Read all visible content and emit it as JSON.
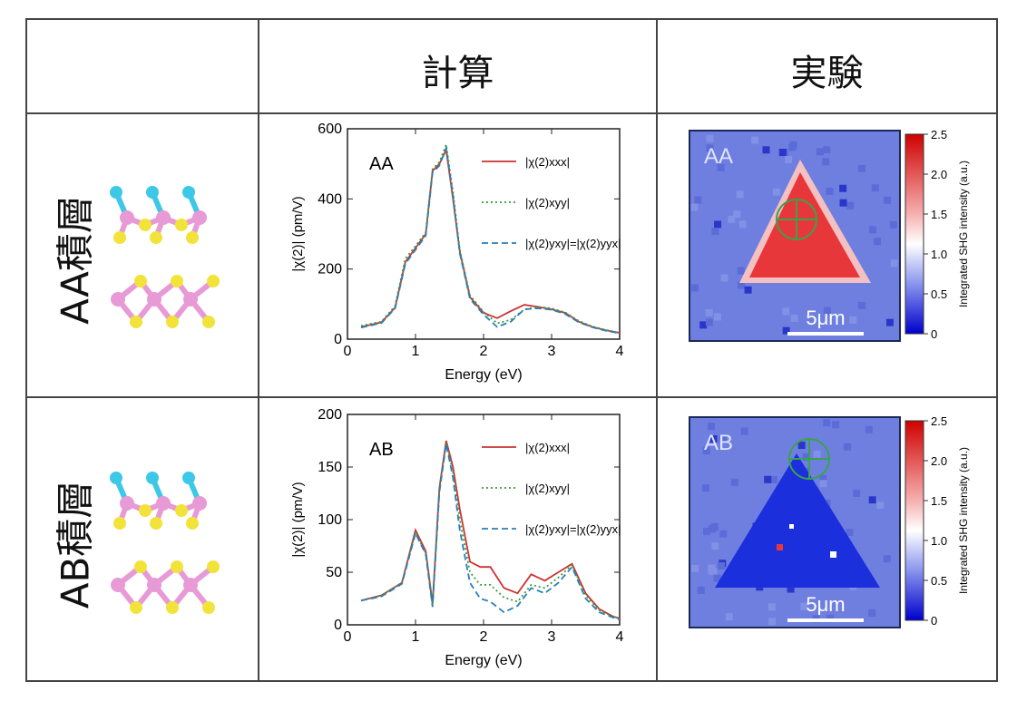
{
  "headers": {
    "calc": "計算",
    "exp": "実験"
  },
  "rows": [
    {
      "label": "AA積層",
      "chart_data": {
        "type": "line",
        "panel_label": "AA",
        "xlabel": "Energy (eV)",
        "ylabel": "|χ(2)| (pm/V)",
        "xlim": [
          0,
          4
        ],
        "ylim": [
          0,
          600
        ],
        "xticks": [
          "0",
          "1",
          "2",
          "3",
          "4"
        ],
        "yticks": [
          "0",
          "200",
          "400",
          "600"
        ],
        "legend_position": "top-right",
        "series": [
          {
            "name": "|χ(2)xxx|",
            "color": "#cc3333",
            "dash": "solid",
            "x": [
              0.2,
              0.5,
              0.7,
              0.85,
              1.0,
              1.15,
              1.25,
              1.35,
              1.45,
              1.55,
              1.65,
              1.8,
              2.0,
              2.2,
              2.4,
              2.6,
              2.8,
              3.0,
              3.2,
              3.4,
              3.6,
              3.8,
              4.0
            ],
            "y": [
              35,
              48,
              90,
              220,
              260,
              300,
              480,
              500,
              540,
              400,
              250,
              120,
              75,
              60,
              80,
              98,
              92,
              85,
              75,
              50,
              35,
              25,
              18
            ]
          },
          {
            "name": "|χ(2)xyy|",
            "color": "#3a9a3a",
            "dash": "dotted",
            "x": [
              0.2,
              0.5,
              0.7,
              0.85,
              1.0,
              1.15,
              1.25,
              1.35,
              1.45,
              1.55,
              1.65,
              1.8,
              2.0,
              2.2,
              2.4,
              2.6,
              2.8,
              3.0,
              3.2,
              3.4,
              3.6,
              3.8,
              4.0
            ],
            "y": [
              38,
              50,
              95,
              230,
              265,
              305,
              485,
              505,
              555,
              420,
              255,
              125,
              78,
              45,
              55,
              85,
              92,
              88,
              76,
              52,
              36,
              26,
              18
            ]
          },
          {
            "name": "|χ(2)yxy|=|χ(2)yyx|",
            "color": "#2a7fb8",
            "dash": "dashed",
            "x": [
              0.2,
              0.5,
              0.7,
              0.85,
              1.0,
              1.15,
              1.25,
              1.35,
              1.45,
              1.55,
              1.65,
              1.8,
              2.0,
              2.2,
              2.4,
              2.6,
              2.8,
              3.0,
              3.2,
              3.4,
              3.6,
              3.8,
              4.0
            ],
            "y": [
              33,
              46,
              88,
              215,
              255,
              295,
              475,
              495,
              545,
              410,
              245,
              115,
              70,
              35,
              50,
              85,
              88,
              84,
              72,
              48,
              34,
              24,
              17
            ]
          }
        ]
      },
      "map": {
        "label": "AA",
        "scale_bar": "5μm",
        "colorbar_title": "Integrated SHG intensity (a.u.)",
        "colorbar_ticks": [
          "2.5",
          "2.0",
          "1.5",
          "1.0",
          "0.5",
          "0"
        ]
      }
    },
    {
      "label": "AB積層",
      "chart_data": {
        "type": "line",
        "panel_label": "AB",
        "xlabel": "Energy (eV)",
        "ylabel": "|χ(2)| (pm/V)",
        "xlim": [
          0,
          4
        ],
        "ylim": [
          0,
          200
        ],
        "xticks": [
          "0",
          "1",
          "2",
          "3",
          "4"
        ],
        "yticks": [
          "0",
          "50",
          "100",
          "150",
          "200"
        ],
        "legend_position": "top-right",
        "series": [
          {
            "name": "|χ(2)xxx|",
            "color": "#cc3333",
            "dash": "solid",
            "x": [
              0.2,
              0.5,
              0.8,
              1.0,
              1.15,
              1.25,
              1.35,
              1.45,
              1.55,
              1.65,
              1.8,
              1.95,
              2.1,
              2.3,
              2.5,
              2.7,
              2.9,
              3.1,
              3.3,
              3.5,
              3.7,
              3.9,
              4.0
            ],
            "y": [
              23,
              28,
              40,
              90,
              70,
              20,
              130,
              175,
              150,
              110,
              60,
              55,
              55,
              35,
              30,
              48,
              42,
              50,
              58,
              30,
              15,
              8,
              6
            ]
          },
          {
            "name": "|χ(2)xyy|",
            "color": "#3a9a3a",
            "dash": "dotted",
            "x": [
              0.2,
              0.5,
              0.8,
              1.0,
              1.15,
              1.25,
              1.35,
              1.45,
              1.55,
              1.65,
              1.8,
              1.95,
              2.1,
              2.3,
              2.5,
              2.7,
              2.9,
              3.1,
              3.3,
              3.5,
              3.7,
              3.9,
              4.0
            ],
            "y": [
              23,
              28,
              40,
              88,
              68,
              18,
              128,
              173,
              145,
              100,
              50,
              38,
              38,
              26,
              22,
              38,
              35,
              45,
              57,
              28,
              14,
              8,
              6
            ]
          },
          {
            "name": "|χ(2)yxy|=|χ(2)yyx|",
            "color": "#2a7fb8",
            "dash": "dashed",
            "x": [
              0.2,
              0.5,
              0.8,
              1.0,
              1.15,
              1.25,
              1.35,
              1.45,
              1.55,
              1.65,
              1.8,
              1.95,
              2.1,
              2.3,
              2.5,
              2.7,
              2.9,
              3.1,
              3.3,
              3.5,
              3.7,
              3.9,
              4.0
            ],
            "y": [
              23,
              27,
              39,
              87,
              67,
              17,
              126,
              172,
              140,
              90,
              40,
              25,
              22,
              12,
              18,
              35,
              30,
              40,
              55,
              25,
              12,
              7,
              5
            ]
          }
        ]
      },
      "map": {
        "label": "AB",
        "scale_bar": "5μm",
        "colorbar_title": "Integrated SHG intensity (a.u.)",
        "colorbar_ticks": [
          "2.5",
          "2.0",
          "1.5",
          "1.0",
          "0.5",
          "0"
        ]
      }
    }
  ],
  "colors": {
    "sulfur": "#f2e33a",
    "metal": "#e79ad6",
    "cap": "#3cc8e6",
    "blue_map": "#6f7fe0",
    "red_map": "#e8373a"
  }
}
